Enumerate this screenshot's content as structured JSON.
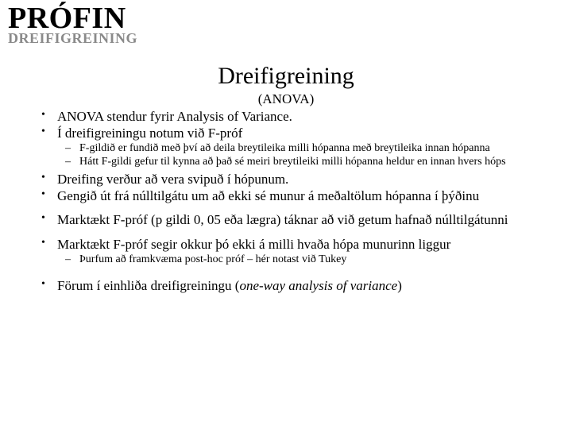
{
  "header": {
    "title": "PRÓFIN",
    "subtitle": "DREIFIGREINING"
  },
  "main": {
    "title": "Dreifigreining",
    "anova": "(ANOVA)",
    "bullets": {
      "b1": "ANOVA stendur fyrir Analysis of Variance.",
      "b2": "Í dreifigreiningu notum við F-próf",
      "b2_sub1": "F-gildið er fundið með því að deila breytileika milli hópanna með breytileika innan hópanna",
      "b2_sub2": "Hátt F-gildi gefur til kynna að það sé meiri breytileiki milli hópanna heldur en innan hvers hóps",
      "b3": "Dreifing verður að vera svipuð í hópunum.",
      "b4": "Gengið út frá núlltilgátu um að ekki sé munur á meðaltölum hópanna í þýðinu",
      "b5": "Marktækt F-próf (p gildi 0, 05 eða lægra) táknar að við getum hafnað núlltilgátunni",
      "b6": "Marktækt F-próf segir okkur þó ekki á milli hvaða hópa munurinn liggur",
      "b6_sub1": "Þurfum að framkvæma post-hoc próf – hér notast við Tukey",
      "b7_a": "Förum í einhliða dreifigreiningu (",
      "b7_b": "one-way analysis of variance",
      "b7_c": ")"
    }
  }
}
